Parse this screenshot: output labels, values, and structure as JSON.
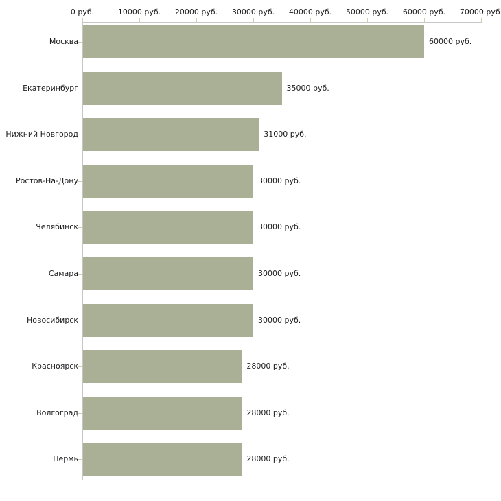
{
  "chart_data": {
    "type": "bar",
    "orientation": "horizontal",
    "title": "",
    "categories": [
      "Москва",
      "Екатеринбург",
      "Нижний Новгород",
      "Ростов-На-Дону",
      "Челябинск",
      "Самара",
      "Новосибирск",
      "Красноярск",
      "Волгоград",
      "Пермь"
    ],
    "values": [
      60000,
      35000,
      31000,
      30000,
      30000,
      30000,
      30000,
      28000,
      28000,
      28000
    ],
    "bar_labels": [
      "60000 руб.",
      "35000 руб.",
      "31000 руб.",
      "30000 руб.",
      "30000 руб.",
      "30000 руб.",
      "30000 руб.",
      "28000 руб.",
      "28000 руб.",
      "28000 руб."
    ],
    "x_axis": {
      "position": "top",
      "min": 0,
      "max": 70000,
      "ticks": [
        0,
        10000,
        20000,
        30000,
        40000,
        50000,
        60000,
        70000
      ],
      "tick_labels": [
        "0 руб.",
        "10000 руб.",
        "20000 руб.",
        "30000 руб.",
        "40000 руб.",
        "50000 руб.",
        "60000 руб.",
        "70000 руб."
      ]
    },
    "grid": false,
    "legend": false,
    "colors": {
      "bar": "#a9b095",
      "axis_line": "#c6c6c6",
      "tick_mark": "#cdcfae",
      "text": "#1c1c1c",
      "background": "#ffffff"
    }
  }
}
